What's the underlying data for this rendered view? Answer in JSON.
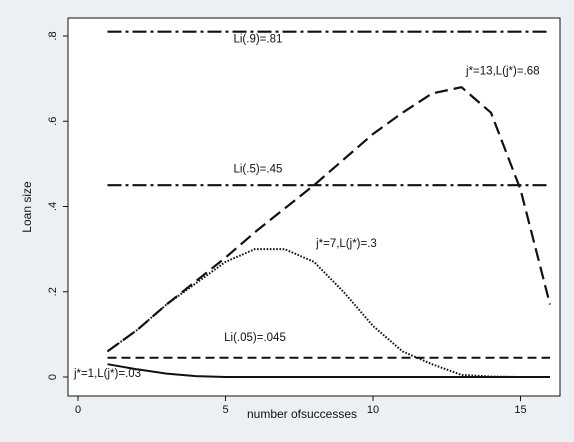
{
  "chart_data": {
    "type": "line",
    "title": "",
    "xlabel": "number ofsuccesses",
    "ylabel": "Loan size",
    "xlim": [
      0,
      16
    ],
    "ylim": [
      0,
      0.85
    ],
    "x_ticks": [
      {
        "value": 0,
        "label": "0"
      },
      {
        "value": 5,
        "label": "5"
      },
      {
        "value": 10,
        "label": "10"
      },
      {
        "value": 15,
        "label": "15"
      }
    ],
    "y_ticks": [
      {
        "value": 0,
        "label": "0"
      },
      {
        "value": 0.2,
        "label": ".2"
      },
      {
        "value": 0.4,
        "label": ".4"
      },
      {
        "value": 0.6,
        "label": ".6"
      },
      {
        "value": 0.8,
        "label": ".8"
      }
    ],
    "grid": false,
    "legend": "none",
    "series": [
      {
        "style": "dash-dot",
        "color": "#111111",
        "x": [
          1,
          16
        ],
        "y": [
          0.81,
          0.81
        ]
      },
      {
        "style": "dash-dot",
        "color": "#111111",
        "x": [
          1,
          16
        ],
        "y": [
          0.45,
          0.45
        ]
      },
      {
        "style": "dashed",
        "color": "#111111",
        "x": [
          1,
          16
        ],
        "y": [
          0.045,
          0.045
        ]
      },
      {
        "style": "long-dash",
        "color": "#111111",
        "x": [
          1,
          2,
          3,
          4,
          5,
          6,
          7,
          8,
          9,
          10,
          11,
          12,
          13,
          14,
          15,
          16
        ],
        "y": [
          0.06,
          0.11,
          0.17,
          0.225,
          0.28,
          0.34,
          0.395,
          0.45,
          0.51,
          0.57,
          0.62,
          0.665,
          0.68,
          0.62,
          0.44,
          0.17
        ]
      },
      {
        "style": "dotted",
        "color": "#111111",
        "x": [
          1,
          2,
          3,
          4,
          5,
          6,
          7,
          8,
          9,
          10,
          11,
          12,
          13,
          14,
          15,
          16
        ],
        "y": [
          0.06,
          0.11,
          0.17,
          0.22,
          0.27,
          0.3,
          0.3,
          0.27,
          0.2,
          0.12,
          0.06,
          0.03,
          0.005,
          0.001,
          0.0,
          0.0
        ]
      },
      {
        "style": "solid",
        "color": "#111111",
        "x": [
          1,
          2,
          3,
          4,
          5,
          6,
          7,
          8,
          9,
          10,
          11,
          12,
          13,
          14,
          15,
          16
        ],
        "y": [
          0.03,
          0.018,
          0.008,
          0.002,
          0.0,
          0.0,
          0.0,
          0.0,
          0.0,
          0.0,
          0.0,
          0.0,
          0.0,
          0.0,
          0.0,
          0.0
        ]
      }
    ],
    "annotations": [
      {
        "text": "Li(.9)=.81",
        "x": 6.1,
        "y": 0.785
      },
      {
        "text": "j*=13,L(j*)=.68",
        "x": 14.4,
        "y": 0.71
      },
      {
        "text": "Li(.5)=.45",
        "x": 6.1,
        "y": 0.48
      },
      {
        "text": "j*=7,L(j*)=.3",
        "x": 9.1,
        "y": 0.305
      },
      {
        "text": "Li(.05)=.045",
        "x": 6.0,
        "y": 0.085
      },
      {
        "text": "j*=1,L(j*)=.03",
        "x": 1.0,
        "y": 0.0
      }
    ]
  }
}
